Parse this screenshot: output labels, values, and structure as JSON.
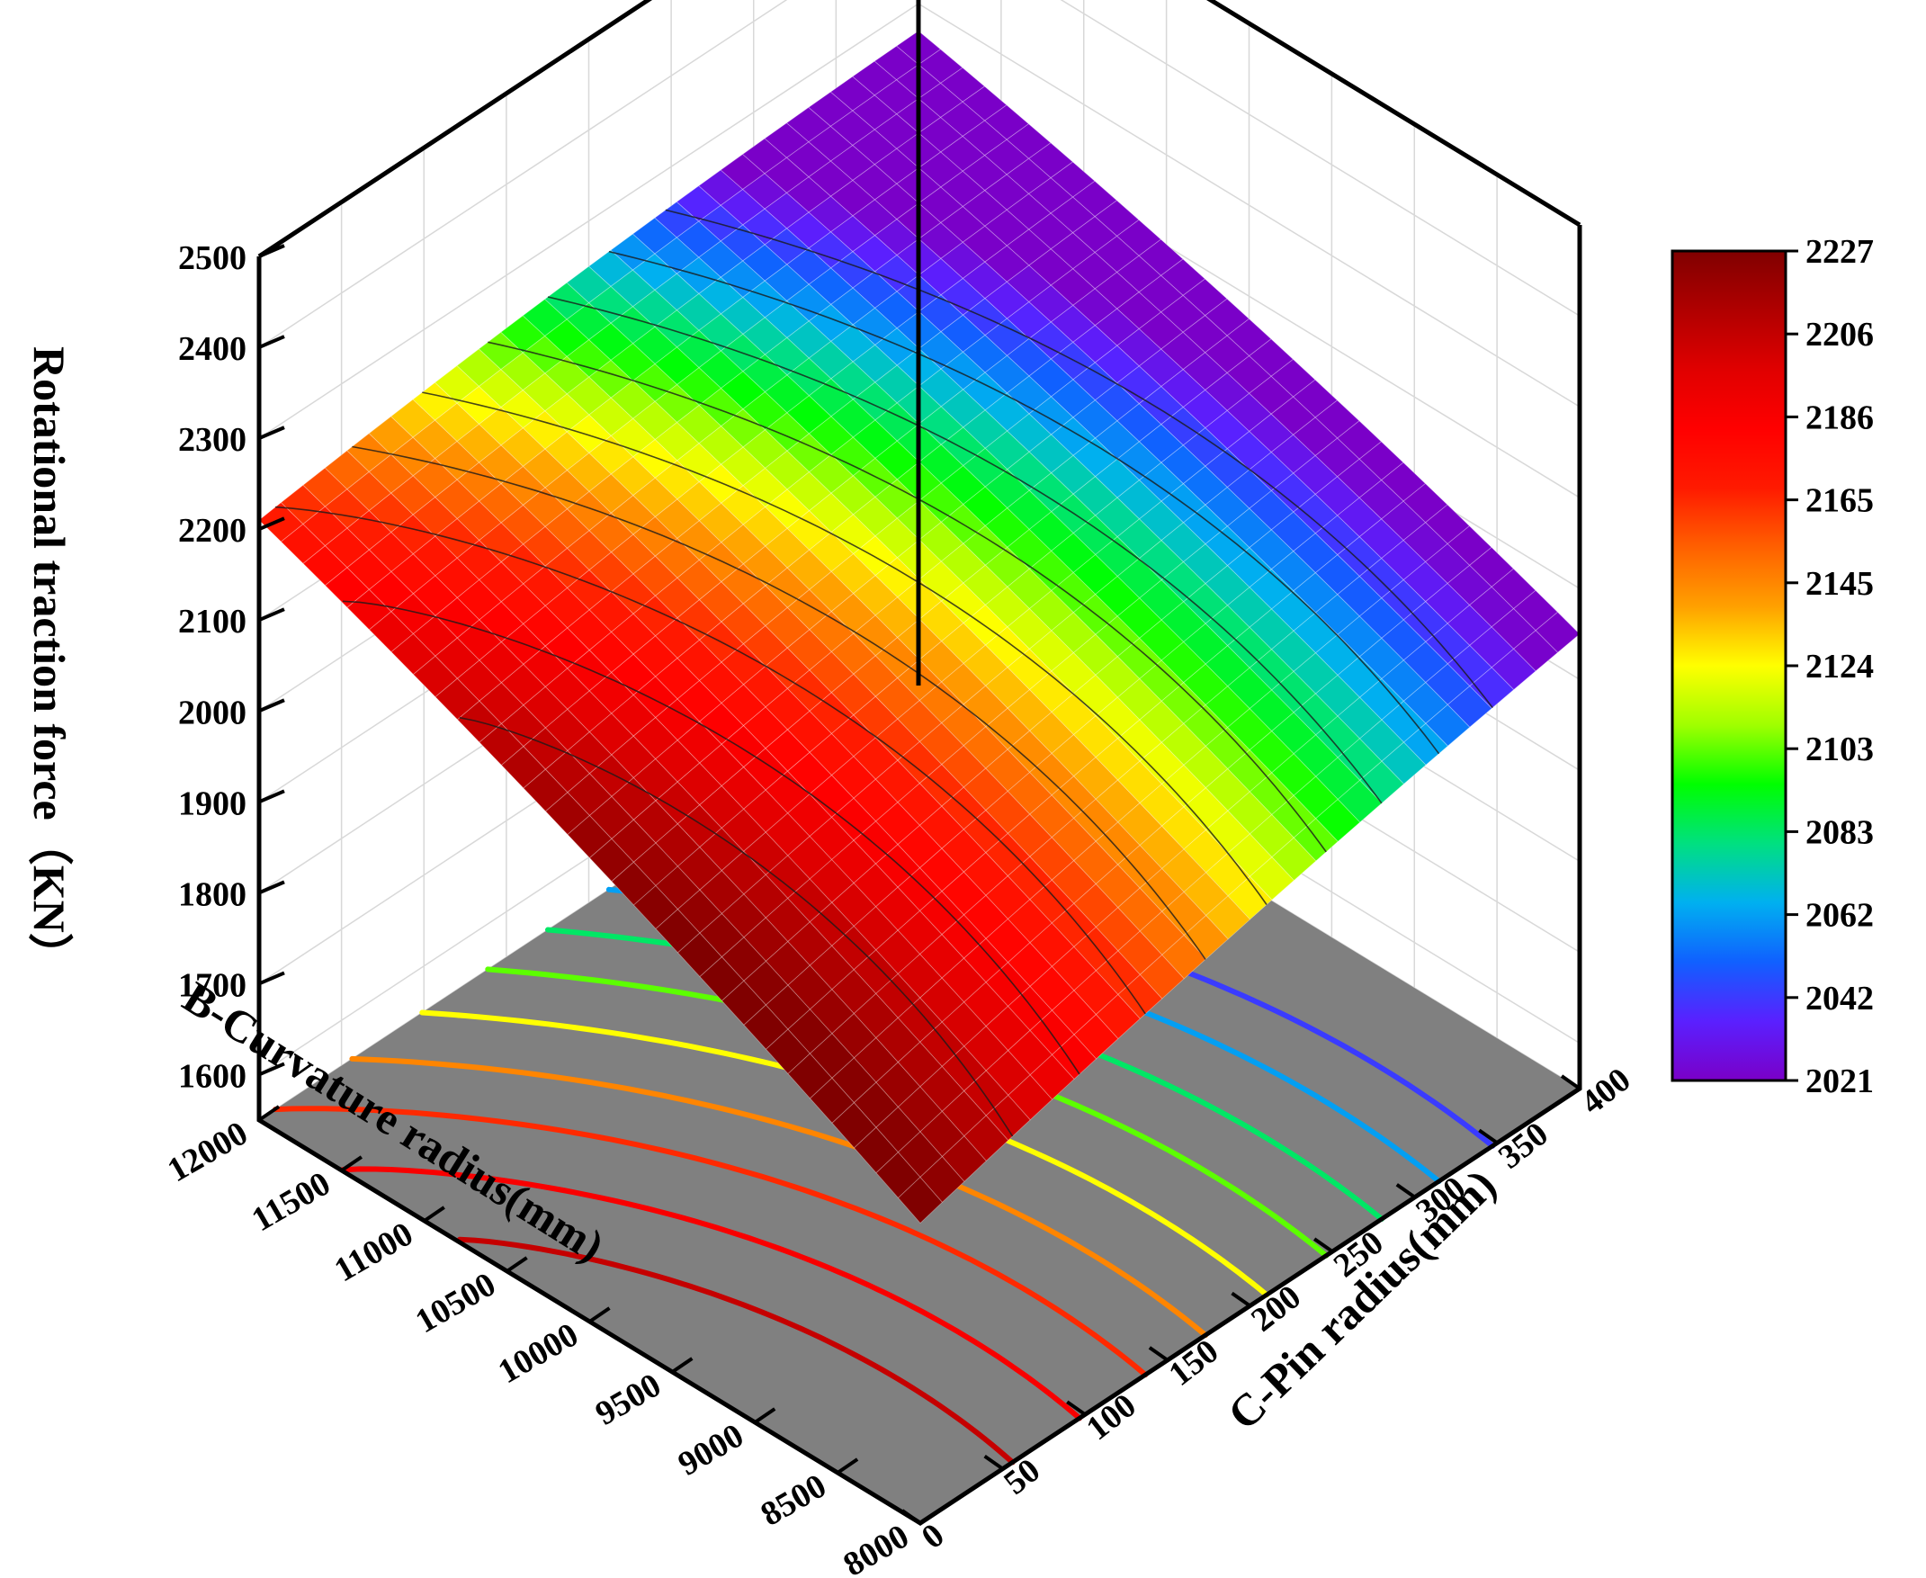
{
  "chart_data": {
    "type": "surface3d",
    "title": "",
    "xlabel": "B-Curvature radius(mm)",
    "ylabel": "C-Pin radius(mm)",
    "zlabel": "Rotational traction force（KN）",
    "xlim": [
      8000,
      12000
    ],
    "ylim": [
      0,
      400
    ],
    "zlim": [
      1550,
      2500
    ],
    "x_ticks": [
      "8000",
      "8500",
      "9000",
      "9500",
      "10000",
      "10500",
      "11000",
      "11500",
      "12000"
    ],
    "y_ticks": [
      "0",
      "50",
      "100",
      "150",
      "200",
      "250",
      "300",
      "350",
      "400"
    ],
    "z_ticks": [
      "1600",
      "1700",
      "1800",
      "1900",
      "2000",
      "2100",
      "2200",
      "2300",
      "2400",
      "2500"
    ],
    "surface_corners": [
      {
        "x": 8000,
        "y": 0,
        "z": 1880
      },
      {
        "x": 12000,
        "y": 0,
        "z": 2210
      },
      {
        "x": 12000,
        "y": 400,
        "z": 2270
      },
      {
        "x": 8000,
        "y": 400,
        "z": 2050
      }
    ],
    "colorbar": {
      "ticks": [
        "2021",
        "2042",
        "2062",
        "2083",
        "2103",
        "2124",
        "2145",
        "2165",
        "2186",
        "2206",
        "2227"
      ],
      "colors": [
        "#7a00c8",
        "#5a20ff",
        "#1060ff",
        "#00b0f0",
        "#00e080",
        "#00ff00",
        "#a0ff00",
        "#ffff00",
        "#ffa000",
        "#ff6000",
        "#ff1a00",
        "#ff0000",
        "#e00000",
        "#b00000",
        "#800000"
      ]
    },
    "contour_levels": [
      2042,
      2062,
      2083,
      2103,
      2124,
      2145,
      2165,
      2186,
      2206
    ],
    "floor_color": "#808080",
    "grid": true
  }
}
